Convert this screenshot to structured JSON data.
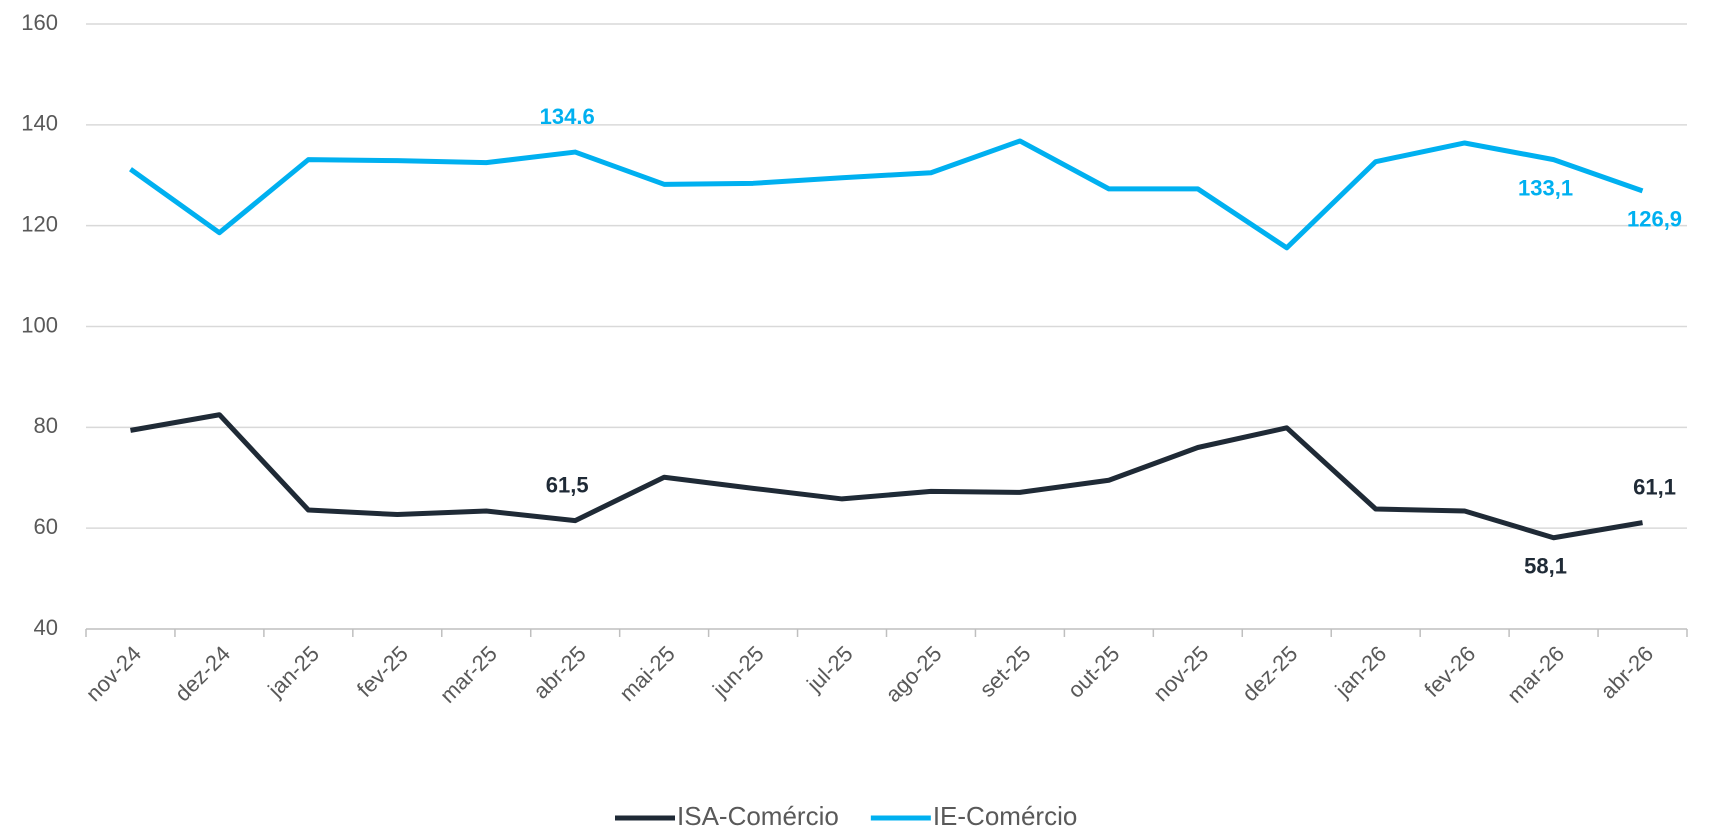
{
  "chart_data": {
    "type": "line",
    "categories": [
      "nov-24",
      "dez-24",
      "jan-25",
      "fev-25",
      "mar-25",
      "abr-25",
      "mai-25",
      "jun-25",
      "jul-25",
      "ago-25",
      "set-25",
      "out-25",
      "nov-25",
      "dez-25",
      "jan-26",
      "fev-26",
      "mar-26",
      "abr-26"
    ],
    "series": [
      {
        "name": "ISA-Comércio",
        "color": "#1f2a36",
        "values": [
          79.4,
          82.5,
          63.6,
          62.7,
          63.4,
          61.5,
          70.1,
          67.9,
          65.8,
          67.3,
          67.1,
          69.5,
          76.0,
          79.9,
          63.8,
          63.4,
          58.1,
          61.1
        ],
        "value_labels": [
          null,
          null,
          null,
          null,
          null,
          "61,5",
          null,
          null,
          null,
          null,
          null,
          null,
          null,
          null,
          null,
          null,
          "58,1",
          "61,1"
        ]
      },
      {
        "name": "IE-Comércio",
        "color": "#00b0f0",
        "values": [
          131.2,
          118.6,
          133.1,
          132.9,
          132.5,
          134.6,
          128.2,
          128.4,
          129.5,
          130.5,
          136.8,
          127.3,
          127.3,
          115.6,
          132.7,
          136.4,
          133.1,
          126.9
        ],
        "value_labels": [
          null,
          null,
          null,
          null,
          null,
          "134.6",
          null,
          null,
          null,
          null,
          null,
          null,
          null,
          null,
          null,
          null,
          "133,1",
          "126,9"
        ]
      }
    ],
    "ylim": [
      40,
      160
    ],
    "yticks": [
      40,
      60,
      80,
      100,
      120,
      140,
      160
    ],
    "grid": true,
    "legend": "bottom"
  }
}
